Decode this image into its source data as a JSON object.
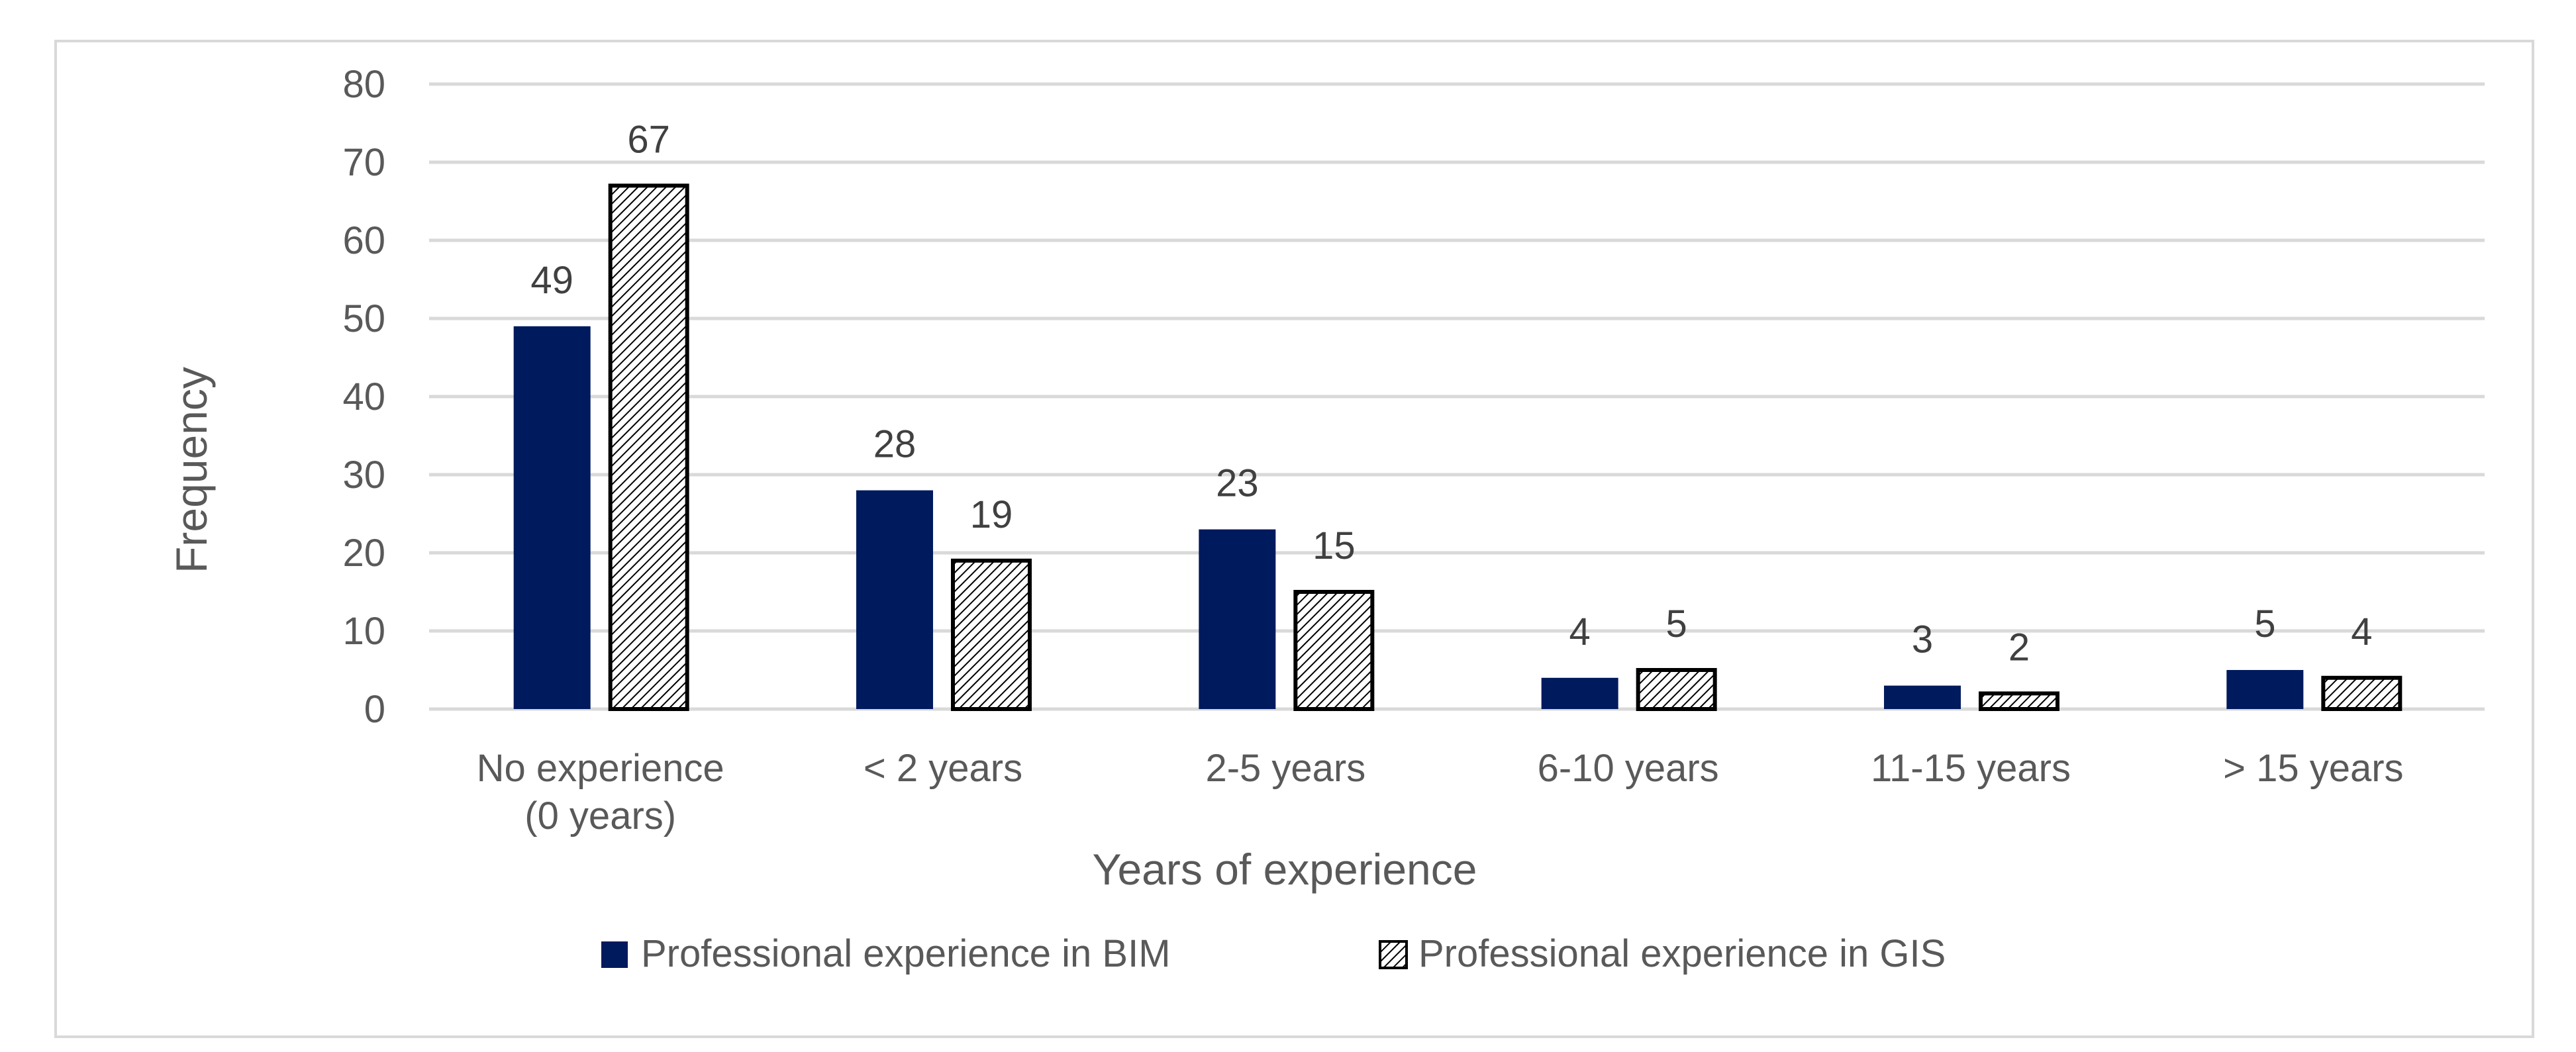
{
  "chart_data": {
    "type": "bar",
    "title": "",
    "xlabel": "Years of experience",
    "ylabel": "Frequency",
    "ylim": [
      0,
      80
    ],
    "yticks": [
      "0",
      "10",
      "20",
      "30",
      "40",
      "50",
      "60",
      "70",
      "80"
    ],
    "grid": true,
    "legend_position": "bottom",
    "categories": [
      [
        "No experience",
        "(0 years)"
      ],
      [
        "< 2 years"
      ],
      [
        "2-5 years"
      ],
      [
        "6-10 years"
      ],
      [
        "11-15 years"
      ],
      [
        "> 15 years"
      ]
    ],
    "series": [
      {
        "name": "Professional experience in BIM",
        "values": [
          49,
          28,
          23,
          4,
          3,
          5
        ],
        "labels": [
          "49",
          "28",
          "23",
          "4",
          "3",
          "5"
        ],
        "color": "#001a5e",
        "fill": "solid"
      },
      {
        "name": "Professional experience in GIS",
        "values": [
          67,
          19,
          15,
          5,
          2,
          4
        ],
        "labels": [
          "67",
          "19",
          "15",
          "5",
          "2",
          "4"
        ],
        "color": "#000000",
        "fill": "hatched"
      }
    ]
  },
  "colors": {
    "grid": "#d9d9d9",
    "text": "#595959",
    "label": "#404040"
  }
}
